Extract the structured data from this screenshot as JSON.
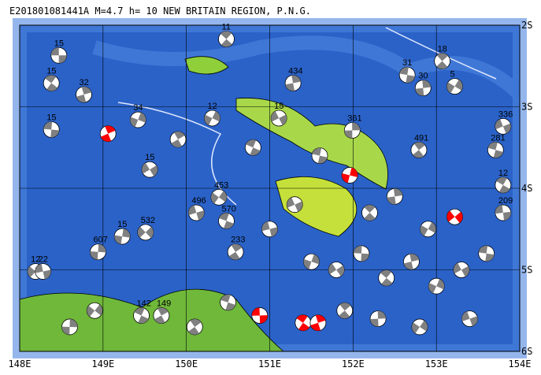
{
  "chart_data": {
    "type": "map",
    "title": "E201801081441A  M=4.7  h= 10  NEW BRITAIN REGION, P.N.G.",
    "xlim": [
      148,
      154
    ],
    "ylim": [
      -6,
      -2
    ],
    "xticks": [
      {
        "value": 148,
        "label": "148E"
      },
      {
        "value": 149,
        "label": "149E"
      },
      {
        "value": 150,
        "label": "150E"
      },
      {
        "value": 151,
        "label": "151E"
      },
      {
        "value": 152,
        "label": "152E"
      },
      {
        "value": 153,
        "label": "153E"
      },
      {
        "value": 154,
        "label": "154E"
      }
    ],
    "yticks": [
      {
        "value": -2,
        "label": "2S"
      },
      {
        "value": -3,
        "label": "3S"
      },
      {
        "value": -4,
        "label": "4S"
      },
      {
        "value": -5,
        "label": "5S"
      },
      {
        "value": -6,
        "label": "6S"
      }
    ],
    "grid": true,
    "ball_color": "#808080",
    "events": [
      {
        "lon": 148.47,
        "lat": -2.37,
        "label": "15"
      },
      {
        "lon": 148.38,
        "lat": -2.71,
        "label": "15"
      },
      {
        "lon": 148.77,
        "lat": -2.85,
        "label": "32"
      },
      {
        "lon": 149.42,
        "lat": -3.16,
        "label": "34"
      },
      {
        "lon": 149.56,
        "lat": -3.77,
        "label": "15"
      },
      {
        "lon": 148.38,
        "lat": -3.28,
        "label": "15"
      },
      {
        "lon": 150.48,
        "lat": -2.17,
        "label": "11"
      },
      {
        "lon": 151.28,
        "lat": -2.71,
        "label": "434"
      },
      {
        "lon": 150.31,
        "lat": -3.14,
        "label": "12"
      },
      {
        "lon": 151.11,
        "lat": -3.14,
        "label": "15"
      },
      {
        "lon": 152.65,
        "lat": -2.61,
        "label": "31"
      },
      {
        "lon": 153.07,
        "lat": -2.44,
        "label": "18"
      },
      {
        "lon": 152.84,
        "lat": -2.77,
        "label": "30"
      },
      {
        "lon": 153.22,
        "lat": -2.75,
        "label": "5"
      },
      {
        "lon": 153.8,
        "lat": -3.24,
        "label": "336"
      },
      {
        "lon": 153.71,
        "lat": -3.53,
        "label": "281"
      },
      {
        "lon": 152.79,
        "lat": -3.53,
        "label": "491"
      },
      {
        "lon": 151.99,
        "lat": -3.29,
        "label": "361"
      },
      {
        "lon": 150.39,
        "lat": -4.11,
        "label": "453"
      },
      {
        "lon": 150.12,
        "lat": -4.3,
        "label": "496"
      },
      {
        "lon": 150.48,
        "lat": -4.4,
        "label": "570"
      },
      {
        "lon": 150.59,
        "lat": -4.78,
        "label": "233"
      },
      {
        "lon": 148.94,
        "lat": -4.78,
        "label": "607"
      },
      {
        "lon": 148.19,
        "lat": -5.02,
        "label": "12"
      },
      {
        "lon": 148.28,
        "lat": -5.02,
        "label": "22"
      },
      {
        "lon": 149.46,
        "lat": -5.56,
        "label": "142"
      },
      {
        "lon": 149.7,
        "lat": -5.56,
        "label": "149"
      },
      {
        "lon": 149.23,
        "lat": -4.59,
        "label": "15"
      },
      {
        "lon": 149.51,
        "lat": -4.54,
        "label": "532"
      },
      {
        "lon": 153.8,
        "lat": -4.3,
        "label": "209"
      },
      {
        "lon": 153.8,
        "lat": -3.96,
        "label": "12"
      },
      {
        "lon": 149.06,
        "lat": -3.33,
        "color": "#ff0000"
      },
      {
        "lon": 151.96,
        "lat": -3.84,
        "color": "#ff0000"
      },
      {
        "lon": 153.22,
        "lat": -4.35,
        "color": "#ff0000"
      },
      {
        "lon": 150.88,
        "lat": -5.56,
        "color": "#ff0000"
      },
      {
        "lon": 151.4,
        "lat": -5.65,
        "color": "#ff0000"
      },
      {
        "lon": 151.58,
        "lat": -5.65,
        "color": "#ff0000"
      },
      {
        "lon": 151.5,
        "lat": -4.9
      },
      {
        "lon": 151.8,
        "lat": -5.0
      },
      {
        "lon": 152.1,
        "lat": -4.8
      },
      {
        "lon": 152.4,
        "lat": -5.1
      },
      {
        "lon": 152.7,
        "lat": -4.9
      },
      {
        "lon": 153.0,
        "lat": -5.2
      },
      {
        "lon": 153.3,
        "lat": -5.0
      },
      {
        "lon": 153.6,
        "lat": -4.8
      },
      {
        "lon": 152.2,
        "lat": -4.3
      },
      {
        "lon": 152.5,
        "lat": -4.1
      },
      {
        "lon": 152.9,
        "lat": -4.5
      },
      {
        "lon": 151.3,
        "lat": -4.2
      },
      {
        "lon": 151.6,
        "lat": -3.6
      },
      {
        "lon": 151.9,
        "lat": -5.5
      },
      {
        "lon": 152.3,
        "lat": -5.6
      },
      {
        "lon": 152.8,
        "lat": -5.7
      },
      {
        "lon": 153.4,
        "lat": -5.6
      },
      {
        "lon": 150.5,
        "lat": -5.4
      },
      {
        "lon": 150.1,
        "lat": -5.7
      },
      {
        "lon": 148.6,
        "lat": -5.7
      },
      {
        "lon": 148.9,
        "lat": -5.5
      },
      {
        "lon": 151.0,
        "lat": -4.5
      },
      {
        "lon": 150.8,
        "lat": -3.5
      },
      {
        "lon": 149.9,
        "lat": -3.4
      }
    ]
  }
}
